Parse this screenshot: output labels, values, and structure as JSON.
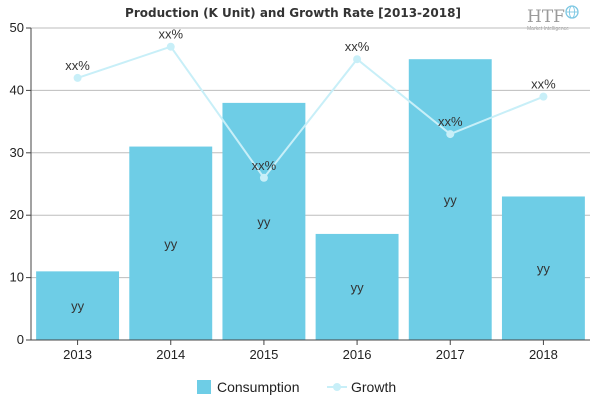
{
  "chart_data": {
    "type": "bar",
    "title": "Production (K Unit) and Growth Rate [2013-2018]",
    "categories": [
      "2013",
      "2014",
      "2015",
      "2016",
      "2017",
      "2018"
    ],
    "ylim": [
      0,
      50
    ],
    "yticks": [
      0,
      10,
      20,
      30,
      40,
      50
    ],
    "grid": true,
    "legend_position": "bottom",
    "series": [
      {
        "name": "Consumption",
        "type": "bar",
        "values": [
          11,
          31,
          38,
          17,
          45,
          23
        ],
        "labels": [
          "yy",
          "yy",
          "yy",
          "yy",
          "yy",
          "yy"
        ],
        "color": "#6ecde6"
      },
      {
        "name": "Growth",
        "type": "line",
        "values": [
          42,
          47,
          26,
          45,
          33,
          39
        ],
        "labels": [
          "xx%",
          "xx%",
          "xx%",
          "xx%",
          "xx%",
          "xx%"
        ],
        "color": "#c8eff8"
      }
    ]
  },
  "logo": {
    "text": "HTF",
    "subtext": "Market Intelligence"
  }
}
